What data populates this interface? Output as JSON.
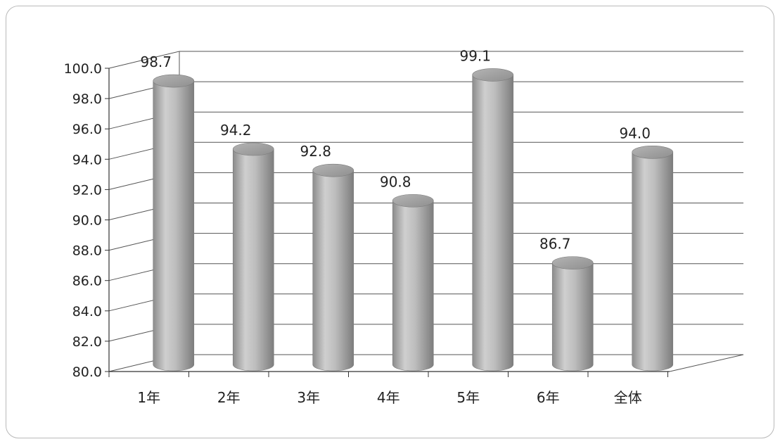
{
  "chart_data": {
    "type": "bar",
    "categories": [
      "1年",
      "2年",
      "3年",
      "4年",
      "5年",
      "6年",
      "全体"
    ],
    "values": [
      98.7,
      94.2,
      92.8,
      90.8,
      99.1,
      86.7,
      94.0
    ],
    "data_labels": [
      "98.7",
      "94.2",
      "92.8",
      "90.8",
      "99.1",
      "86.7",
      "94.0"
    ],
    "ylim": [
      80,
      100
    ],
    "yticks": [
      80,
      82,
      84,
      86,
      88,
      90,
      92,
      94,
      96,
      98,
      100
    ],
    "ytick_labels": [
      "80.0",
      "82.0",
      "84.0",
      "86.0",
      "88.0",
      "90.0",
      "92.0",
      "94.0",
      "96.0",
      "98.0",
      "100.0"
    ],
    "grid": true,
    "style": "3d-cylinder",
    "bar_color": "#a9a9a9",
    "grid_color": "#555555"
  }
}
